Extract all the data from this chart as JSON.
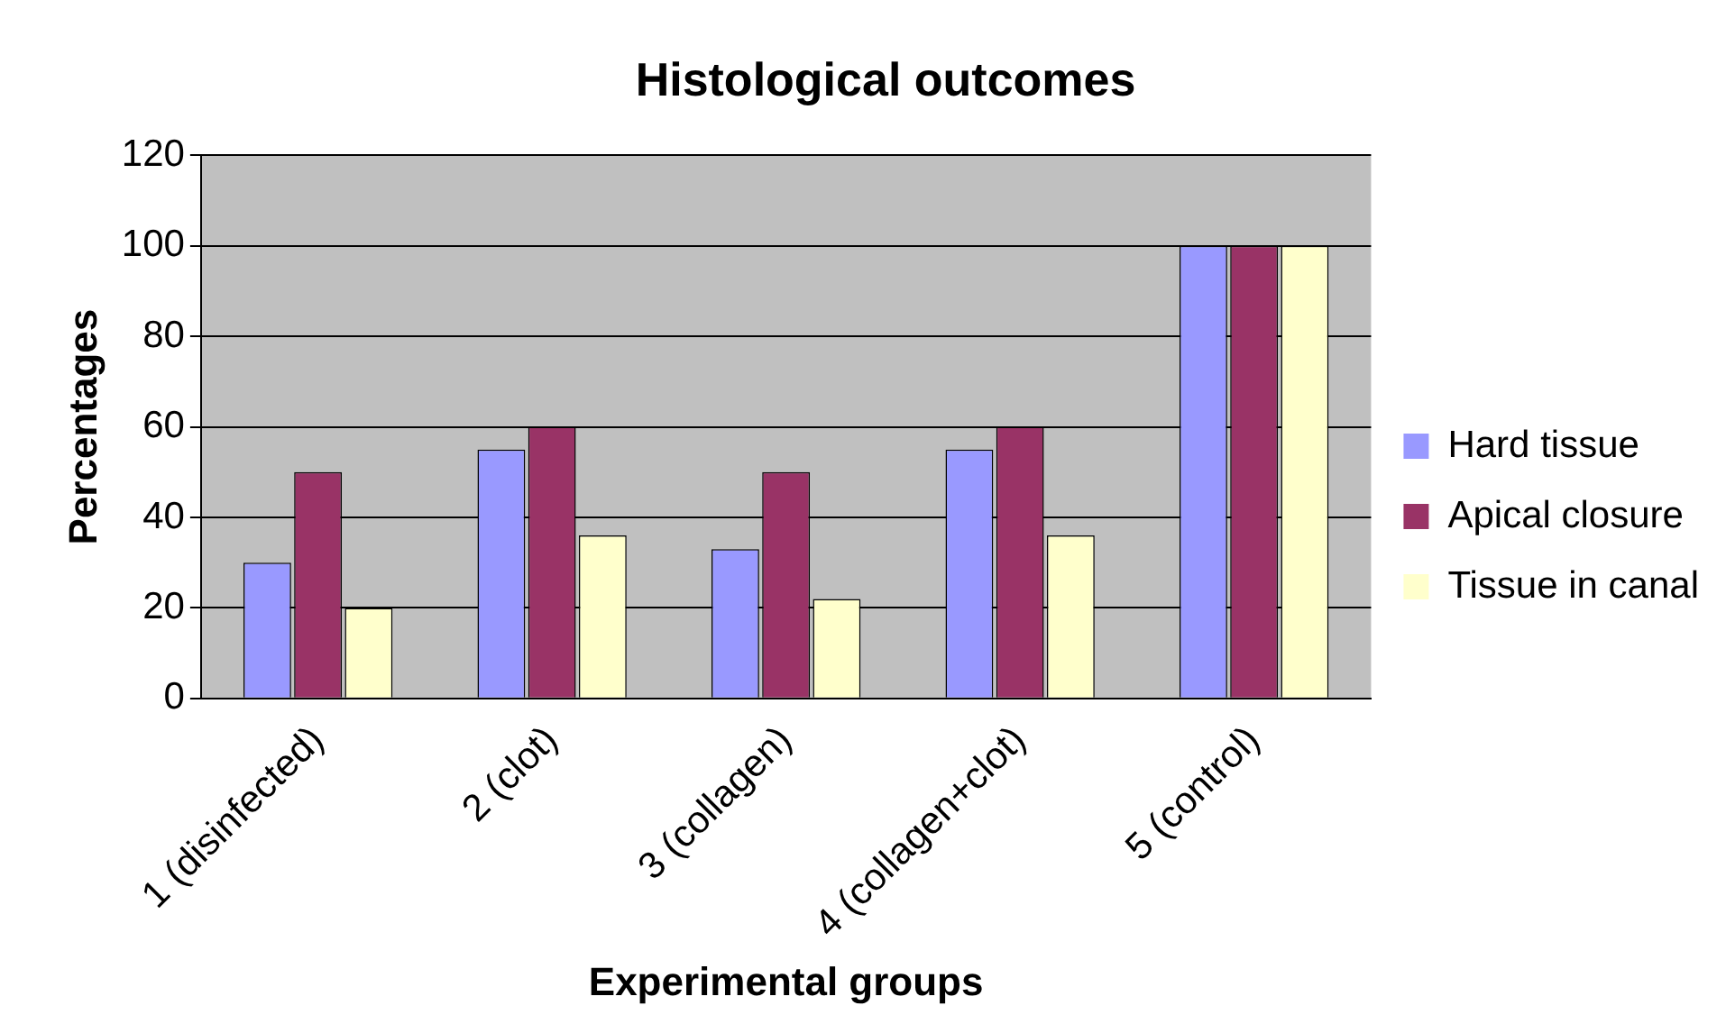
{
  "chart_data": {
    "type": "bar",
    "title": "Histological outcomes",
    "xlabel": "Experimental groups",
    "ylabel": "Percentages",
    "categories": [
      "1 (disinfected)",
      "2 (clot)",
      "3 (collagen)",
      "4 (collagen+clot)",
      "5 (control)"
    ],
    "series": [
      {
        "name": "Hard tissue",
        "color": "#9999ff",
        "values": [
          30,
          55,
          33,
          55,
          100
        ]
      },
      {
        "name": "Apical closure",
        "color": "#993366",
        "values": [
          50,
          60,
          50,
          60,
          100
        ]
      },
      {
        "name": "Tissue in canal",
        "color": "#ffffcc",
        "values": [
          20,
          36,
          22,
          36,
          100
        ]
      }
    ],
    "ylim": [
      0,
      120
    ],
    "yticks": [
      0,
      20,
      40,
      60,
      80,
      100,
      120
    ],
    "grid": "y",
    "legend": "right"
  }
}
